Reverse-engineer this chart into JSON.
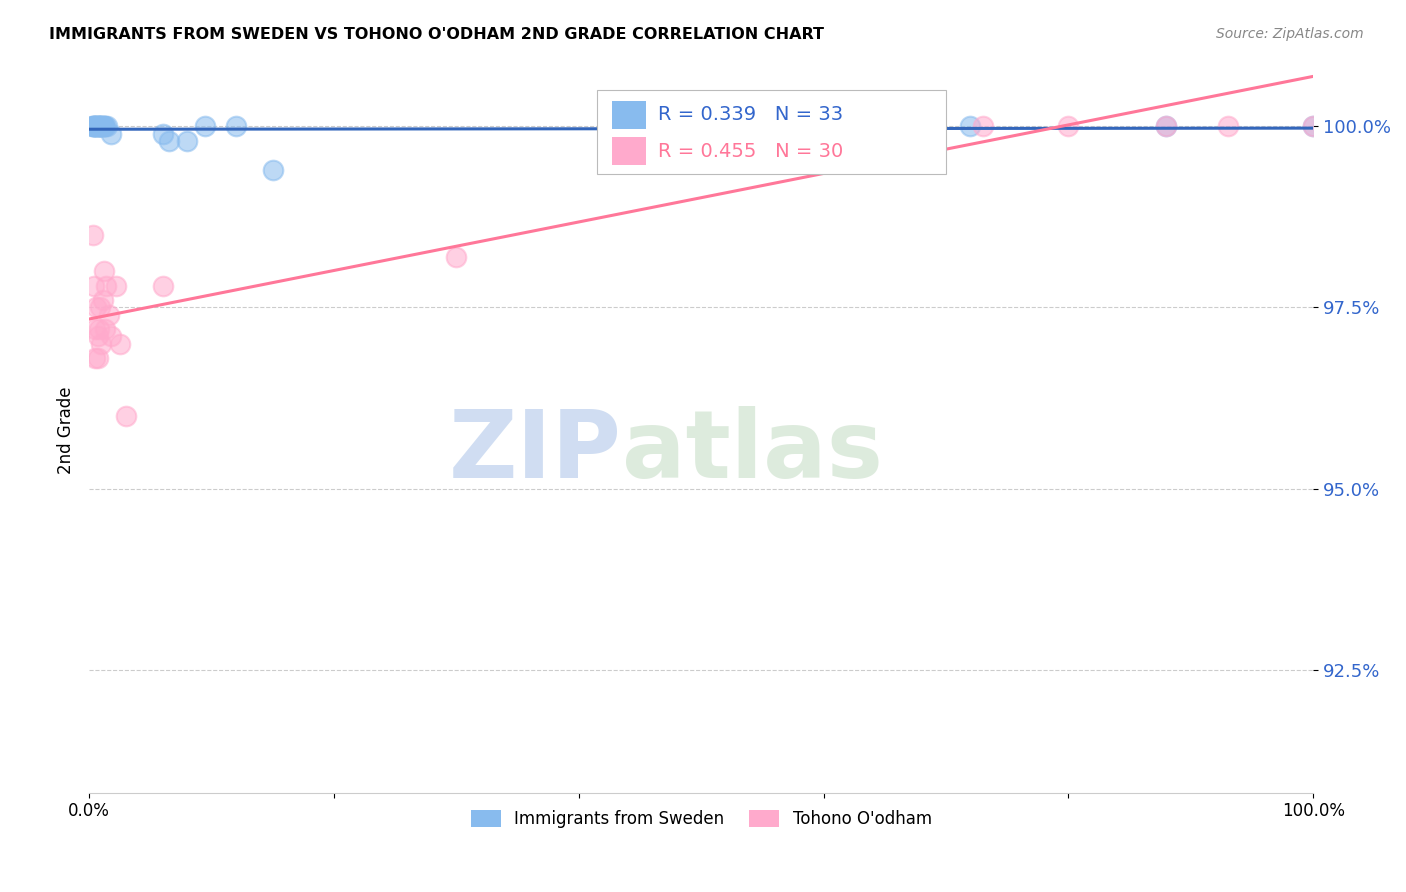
{
  "title": "IMMIGRANTS FROM SWEDEN VS TOHONO O'ODHAM 2ND GRADE CORRELATION CHART",
  "source": "Source: ZipAtlas.com",
  "ylabel": "2nd Grade",
  "blue_label": "Immigrants from Sweden",
  "pink_label": "Tohono O'odham",
  "blue_R": "R = 0.339",
  "blue_N": "N = 33",
  "pink_R": "R = 0.455",
  "pink_N": "N = 30",
  "blue_color": "#88BBEE",
  "pink_color": "#FFAACC",
  "blue_line_color": "#3366BB",
  "pink_line_color": "#FF7799",
  "watermark_zip": "ZIP",
  "watermark_atlas": "atlas",
  "xlim": [
    0.0,
    1.0
  ],
  "ylim": [
    0.908,
    1.008
  ],
  "ytick_values": [
    1.0,
    0.975,
    0.95,
    0.925
  ],
  "ytick_labels": [
    "100.0%",
    "97.5%",
    "95.0%",
    "92.5%"
  ],
  "xtick_values": [
    0.0,
    0.2,
    0.4,
    0.6,
    0.8,
    1.0
  ],
  "xtick_labels": [
    "0.0%",
    "",
    "",
    "",
    "",
    "100.0%"
  ],
  "blue_x": [
    0.002,
    0.003,
    0.004,
    0.004,
    0.005,
    0.005,
    0.006,
    0.006,
    0.007,
    0.007,
    0.008,
    0.008,
    0.009,
    0.009,
    0.01,
    0.01,
    0.011,
    0.012,
    0.012,
    0.013,
    0.015,
    0.018,
    0.06,
    0.065,
    0.08,
    0.095,
    0.12,
    0.15,
    0.52,
    0.62,
    0.72,
    0.88,
    1.0
  ],
  "blue_y": [
    1.0,
    1.0,
    1.0,
    1.0,
    1.0,
    1.0,
    1.0,
    1.0,
    1.0,
    1.0,
    1.0,
    1.0,
    1.0,
    1.0,
    1.0,
    1.0,
    1.0,
    1.0,
    1.0,
    1.0,
    1.0,
    0.999,
    0.999,
    0.998,
    0.998,
    1.0,
    1.0,
    0.994,
    1.0,
    1.0,
    1.0,
    1.0,
    1.0
  ],
  "pink_x": [
    0.003,
    0.004,
    0.005,
    0.005,
    0.006,
    0.007,
    0.007,
    0.008,
    0.009,
    0.01,
    0.011,
    0.012,
    0.013,
    0.014,
    0.016,
    0.018,
    0.022,
    0.025,
    0.03,
    0.06,
    0.3,
    0.6,
    0.63,
    0.65,
    0.68,
    0.73,
    0.8,
    0.88,
    0.93,
    1.0
  ],
  "pink_y": [
    0.985,
    0.978,
    0.972,
    0.968,
    0.975,
    0.971,
    0.968,
    0.972,
    0.975,
    0.97,
    0.976,
    0.98,
    0.972,
    0.978,
    0.974,
    0.971,
    0.978,
    0.97,
    0.96,
    0.978,
    0.982,
    1.0,
    1.0,
    1.0,
    1.0,
    1.0,
    1.0,
    1.0,
    1.0,
    1.0
  ]
}
